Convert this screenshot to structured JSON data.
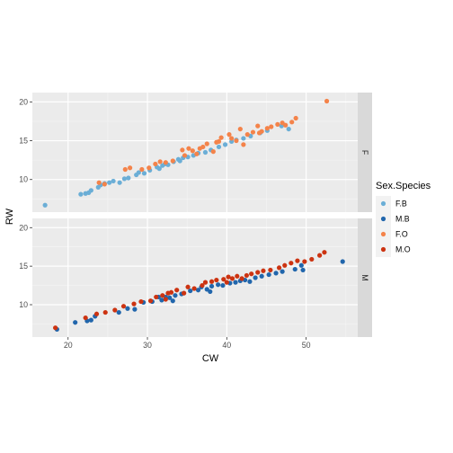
{
  "chart_data": {
    "type": "scatter",
    "xlabel": "CW",
    "ylabel": "RW",
    "xlim": [
      15.5,
      56.5
    ],
    "ylim": [
      5.8,
      21.2
    ],
    "x_ticks": [
      20,
      30,
      40,
      50
    ],
    "y_ticks": [
      10,
      15,
      20
    ],
    "grid": true,
    "facets": [
      "F",
      "M"
    ],
    "legend": {
      "title": "Sex.Species",
      "position": "right",
      "entries": [
        {
          "key": "F.B",
          "label": "F.B",
          "color": "#6baed6"
        },
        {
          "key": "M.B",
          "label": "M.B",
          "color": "#2166ac"
        },
        {
          "key": "F.O",
          "label": "F.O",
          "color": "#f4834a"
        },
        {
          "key": "M.O",
          "label": "M.O",
          "color": "#cc3311"
        }
      ]
    },
    "series": [
      {
        "name": "F.B",
        "facet": "F",
        "points": [
          [
            17.1,
            6.7
          ],
          [
            21.6,
            8.1
          ],
          [
            22.2,
            8.2
          ],
          [
            22.6,
            8.3
          ],
          [
            22.9,
            8.6
          ],
          [
            23.8,
            9.0
          ],
          [
            24.1,
            9.3
          ],
          [
            24.6,
            9.5
          ],
          [
            25.2,
            9.6
          ],
          [
            25.7,
            9.8
          ],
          [
            26.5,
            9.6
          ],
          [
            27.1,
            10.1
          ],
          [
            27.6,
            10.2
          ],
          [
            28.6,
            10.6
          ],
          [
            28.9,
            10.9
          ],
          [
            29.6,
            10.8
          ],
          [
            30.3,
            11.2
          ],
          [
            31.2,
            11.6
          ],
          [
            31.9,
            11.8
          ],
          [
            32.2,
            12.0
          ],
          [
            32.6,
            11.9
          ],
          [
            33.3,
            12.3
          ],
          [
            33.9,
            12.6
          ],
          [
            34.5,
            12.8
          ],
          [
            35.1,
            12.9
          ],
          [
            35.8,
            13.1
          ],
          [
            36.4,
            13.4
          ],
          [
            37.3,
            13.5
          ],
          [
            38.0,
            13.8
          ],
          [
            39.0,
            14.2
          ],
          [
            39.8,
            14.5
          ],
          [
            40.6,
            14.9
          ],
          [
            41.2,
            15.1
          ],
          [
            42.1,
            15.3
          ],
          [
            43.0,
            15.6
          ],
          [
            44.2,
            16.0
          ],
          [
            45.1,
            16.3
          ],
          [
            46.9,
            16.9
          ],
          [
            47.8,
            16.5
          ],
          [
            31.5,
            11.4
          ],
          [
            34.1,
            12.4
          ]
        ]
      },
      {
        "name": "F.O",
        "facet": "F",
        "points": [
          [
            23.9,
            9.6
          ],
          [
            24.6,
            9.4
          ],
          [
            27.2,
            11.3
          ],
          [
            27.8,
            11.5
          ],
          [
            29.3,
            11.3
          ],
          [
            30.2,
            11.5
          ],
          [
            31.0,
            12.0
          ],
          [
            31.6,
            12.3
          ],
          [
            32.3,
            12.2
          ],
          [
            33.2,
            12.4
          ],
          [
            34.4,
            13.8
          ],
          [
            34.7,
            13.1
          ],
          [
            35.2,
            14.0
          ],
          [
            35.7,
            13.7
          ],
          [
            36.2,
            13.3
          ],
          [
            36.6,
            14.0
          ],
          [
            37.0,
            14.2
          ],
          [
            37.5,
            14.6
          ],
          [
            38.3,
            13.6
          ],
          [
            39.0,
            14.9
          ],
          [
            39.3,
            15.4
          ],
          [
            40.3,
            15.8
          ],
          [
            41.2,
            15.0
          ],
          [
            41.7,
            16.5
          ],
          [
            42.1,
            14.5
          ],
          [
            42.6,
            15.8
          ],
          [
            43.3,
            16.1
          ],
          [
            43.9,
            16.9
          ],
          [
            44.4,
            16.2
          ],
          [
            45.1,
            16.6
          ],
          [
            45.6,
            16.8
          ],
          [
            46.4,
            17.1
          ],
          [
            47.0,
            17.3
          ],
          [
            47.4,
            17.0
          ],
          [
            48.2,
            17.4
          ],
          [
            48.7,
            17.9
          ],
          [
            52.6,
            20.1
          ],
          [
            44.1,
            16.0
          ],
          [
            40.6,
            15.3
          ],
          [
            38.7,
            14.8
          ]
        ]
      },
      {
        "name": "M.B",
        "facet": "M",
        "points": [
          [
            18.6,
            6.8
          ],
          [
            20.9,
            7.7
          ],
          [
            22.4,
            7.9
          ],
          [
            22.9,
            8.0
          ],
          [
            23.4,
            8.5
          ],
          [
            26.4,
            9.0
          ],
          [
            27.5,
            9.5
          ],
          [
            28.4,
            9.4
          ],
          [
            29.5,
            10.3
          ],
          [
            30.6,
            10.4
          ],
          [
            31.4,
            11.0
          ],
          [
            31.8,
            10.6
          ],
          [
            32.3,
            11.0
          ],
          [
            32.8,
            10.9
          ],
          [
            33.5,
            11.2
          ],
          [
            34.3,
            11.4
          ],
          [
            35.4,
            11.8
          ],
          [
            36.4,
            11.9
          ],
          [
            36.8,
            12.3
          ],
          [
            37.5,
            12.0
          ],
          [
            38.1,
            12.4
          ],
          [
            38.9,
            12.6
          ],
          [
            39.5,
            12.5
          ],
          [
            40.4,
            12.8
          ],
          [
            41.1,
            12.9
          ],
          [
            41.7,
            13.1
          ],
          [
            42.3,
            13.2
          ],
          [
            42.9,
            13.0
          ],
          [
            43.6,
            13.5
          ],
          [
            44.4,
            13.7
          ],
          [
            45.3,
            13.9
          ],
          [
            46.2,
            14.1
          ],
          [
            47.0,
            14.3
          ],
          [
            48.6,
            14.6
          ],
          [
            49.4,
            15.1
          ],
          [
            49.6,
            14.5
          ],
          [
            54.6,
            15.6
          ],
          [
            37.9,
            11.7
          ],
          [
            33.2,
            10.5
          ]
        ]
      },
      {
        "name": "M.O",
        "facet": "M",
        "points": [
          [
            18.4,
            7.0
          ],
          [
            22.2,
            8.3
          ],
          [
            23.6,
            8.8
          ],
          [
            24.7,
            9.0
          ],
          [
            25.9,
            9.3
          ],
          [
            27.0,
            9.8
          ],
          [
            28.3,
            10.1
          ],
          [
            29.2,
            10.4
          ],
          [
            30.4,
            10.5
          ],
          [
            31.1,
            11.0
          ],
          [
            31.9,
            11.2
          ],
          [
            32.6,
            11.5
          ],
          [
            33.0,
            11.6
          ],
          [
            33.7,
            11.9
          ],
          [
            34.6,
            11.5
          ],
          [
            35.1,
            12.3
          ],
          [
            35.9,
            12.1
          ],
          [
            36.9,
            12.5
          ],
          [
            37.3,
            12.9
          ],
          [
            38.1,
            13.0
          ],
          [
            38.7,
            13.2
          ],
          [
            39.6,
            13.3
          ],
          [
            40.2,
            13.6
          ],
          [
            40.7,
            13.4
          ],
          [
            41.3,
            13.7
          ],
          [
            41.9,
            13.4
          ],
          [
            42.5,
            13.8
          ],
          [
            43.1,
            14.0
          ],
          [
            43.9,
            14.2
          ],
          [
            44.6,
            14.4
          ],
          [
            45.5,
            14.5
          ],
          [
            46.6,
            14.8
          ],
          [
            47.3,
            15.1
          ],
          [
            48.1,
            15.4
          ],
          [
            48.9,
            15.7
          ],
          [
            49.8,
            15.6
          ],
          [
            50.7,
            15.9
          ],
          [
            51.7,
            16.4
          ],
          [
            52.3,
            16.8
          ],
          [
            40.0,
            12.9
          ],
          [
            32.3,
            10.7
          ]
        ]
      }
    ]
  }
}
